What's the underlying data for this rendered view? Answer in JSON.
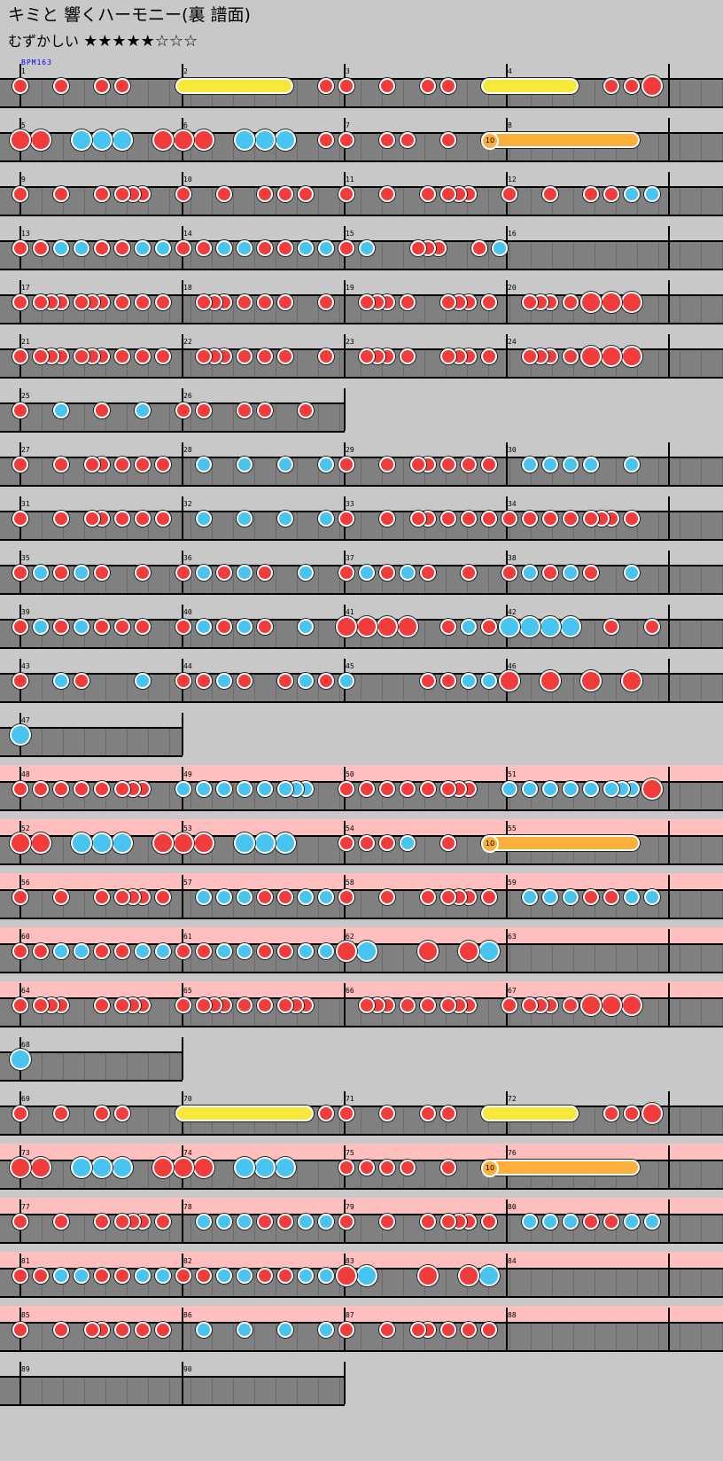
{
  "title": "キミと 響くハーモニー(裏 譜面)",
  "difficulty": {
    "label": "むずかしい",
    "stars": "★★★★★☆☆☆"
  },
  "bpm_label": "BPM163",
  "colors": {
    "background": "#c8c8c8",
    "lane": "#808080",
    "don": "#f23c3c",
    "ka": "#48c4f0",
    "drumroll": "#f8e83c",
    "balloon": "#fbb03b",
    "gogo": "#ffbfbf"
  },
  "balloon_hits": "10",
  "rows": [
    {
      "start": 1,
      "measures": 4,
      "gogo": false,
      "notes": "d0 d2 d4 d5 y8-13 d15 d16 d18 d20 d21 y23-27 d29 d30 D31"
    },
    {
      "start": 5,
      "measures": 4,
      "gogo": false,
      "notes": "D0 D1 K3 K4 K5 D7 D8 D9 K11 K12 K13 d15 d16 d18 d19 d21 b23-30"
    },
    {
      "start": 9,
      "measures": 4,
      "gogo": false,
      "notes": "d0 d2 d4 d5 d5.5 d6 d8 d10 d12 d13 d14 d16 d18 d20 d21 d21.5 d22 d24 d26 d28 d29 k30 k31"
    },
    {
      "start": 13,
      "measures": 4,
      "gogo": false,
      "notes": "d0 d1 k2 k3 d4 d5 k6 k7 d8 d9 k10 k11 d12 d13 k14 k15 d16 k17 d19.5 d20 d20.5 d22.5 k23.5"
    },
    {
      "start": 17,
      "measures": 4,
      "gogo": false,
      "notes": "d0 d1 d1.5 d2 d3 d3.5 d4 d5 d6 d7 d9 d9.5 d10 d11 d12 d13 d15 d17 d17.5 d18 d19 d21 d21.5 d22 d23 d25 d25.5 d26 d27 D28 D29 D30"
    },
    {
      "start": 21,
      "measures": 4,
      "gogo": false,
      "notes": "d0 d1 d1.5 d2 d3 d3.5 d4 d5 d6 d7 d9 d9.5 d10 d11 d12 d13 d15 d17 d17.5 d18 d19 d21 d21.5 d22 d23 d25 d25.5 d26 d27 D28 D29 D30"
    },
    {
      "start": 25,
      "measures": 2,
      "gogo": false,
      "notes": "d0 k2 d4 k6 d8 d9 d11 d12 d14"
    },
    {
      "start": 27,
      "measures": 4,
      "gogo": false,
      "notes": "d0 d2 d3.5 d4 d5 d6 d7 k9 k11 k13 k15 d16 d18 d19.5 d20 d21 d22 d23 k25 k26 k27 k28 k30"
    },
    {
      "start": 31,
      "measures": 4,
      "gogo": false,
      "notes": "d0 d2 d3.5 d4 d5 d6 d7 k9 k11 k13 k15 d16 d18 d19.5 d20 d21 d22 d23 d24 d25 d26 d27 d28 d28.5 d29 d30"
    },
    {
      "start": 35,
      "measures": 4,
      "gogo": false,
      "notes": "d0 k1 d2 k3 d4 d6 d8 k9 d10 k11 d12 k14 d16 k17 d18 k19 d20 d22 d24 k25 d26 k27 d28 k30"
    },
    {
      "start": 39,
      "measures": 4,
      "gogo": false,
      "notes": "d0 k1 d2 k3 d4 d5 d6 d8 k9 d10 k11 d12 k14 D16 D17 D18 D19 d21 k22 d23 K24 K25 K26 K27 d29 d31"
    },
    {
      "start": 43,
      "measures": 4,
      "gogo": false,
      "notes": "d0 k2 d3 k6 d8 d9 k10 d11 d13 k14 d15 k16 d20 d21 k22 k23 D24 D26 D28 D30"
    },
    {
      "start": 47,
      "measures": 1,
      "gogo": false,
      "notes": "K0"
    },
    {
      "start": 48,
      "measures": 4,
      "gogo": true,
      "notes": "d0 d1 d2 d3 d4 d5 d5.5 d6 k8 k9 k10 k11 k12 k13 k13.5 k14 d16 d17 d18 d19 d20 d21 d21.5 d22 k24 k25 k26 k27 k28 k29 k29.5 k30 D31"
    },
    {
      "start": 52,
      "measures": 4,
      "gogo": true,
      "notes": "D0 D1 K3 K4 K5 D7 D8 D9 K11 K12 K13 d16 d17 d18 k19 d21 b23-30"
    },
    {
      "start": 56,
      "measures": 4,
      "gogo": true,
      "notes": "d0 d2 d4 d5 d5.5 d6 d7 k9 k10 k11 d12 d13 k14 k15 d16 d18 d20 d21 d21.5 d22 d23 k25 k26 k27 d28 d29 k30 k31"
    },
    {
      "start": 60,
      "measures": 4,
      "gogo": true,
      "notes": "d0 d1 k2 k3 d4 d5 k6 k7 d8 d9 k10 k11 d12 d13 k14 k15 D16 K17 D20 D22 K23"
    },
    {
      "start": 64,
      "measures": 4,
      "gogo": true,
      "notes": "d0 d1 d1.5 d2 d4 d5 d5.5 d6 d8 d9 d9.5 d10 d11 d12 d13 d13.5 d14 d17 d17.5 d18 d19 d20 d21 d21.5 d22 d24 d25 d25.5 d26 d27 D28 D29 D30"
    },
    {
      "start": 68,
      "measures": 1,
      "gogo": false,
      "notes": "K0"
    },
    {
      "start": 69,
      "measures": 4,
      "gogo": false,
      "notes": "d0 d2 d4 d5 y8-14 d15 d16 d18 d20 d21 y23-27 d29 d30 D31"
    },
    {
      "start": 73,
      "measures": 4,
      "gogo": true,
      "notes": "D0 D1 K3 K4 K5 D7 D8 D9 K11 K12 K13 d16 d17 d18 d19 d21 b23-30"
    },
    {
      "start": 77,
      "measures": 4,
      "gogo": true,
      "notes": "d0 d2 d4 d5 d5.5 d6 d7 k9 k10 k11 d12 d13 k14 k15 d16 d18 d20 d21 d21.5 d22 d23 k25 k26 k27 d28 d29 k30 k31"
    },
    {
      "start": 81,
      "measures": 4,
      "gogo": true,
      "notes": "d0 d1 k2 k3 d4 d5 k6 k7 d8 d9 k10 k11 d12 d13 k14 k15 D16 K17 D20 D22 K23"
    },
    {
      "start": 85,
      "measures": 4,
      "gogo": true,
      "notes": "d0 d2 d3.5 d4 d5 d6 d7 k9 k11 k13 k15 d16 d18 d19.5 d20 d21 d22 d23"
    },
    {
      "start": 89,
      "measures": 2,
      "gogo": false,
      "notes": ""
    }
  ]
}
